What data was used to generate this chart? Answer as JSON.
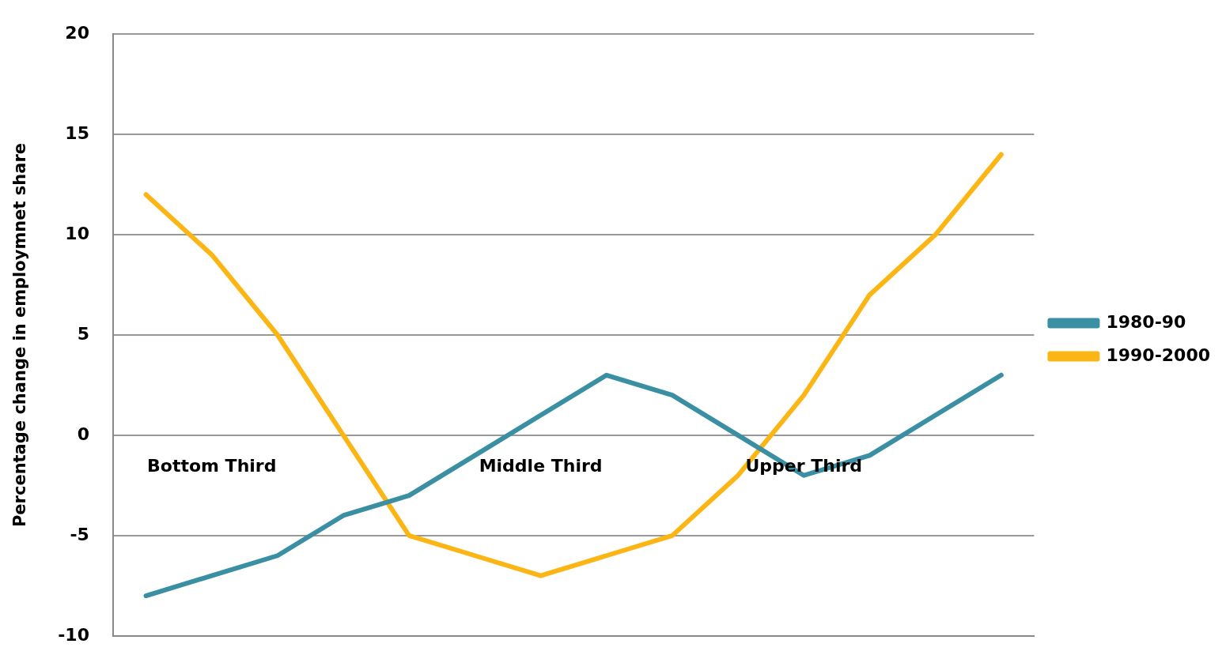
{
  "chart_data": {
    "type": "line",
    "ylabel": "Percentage change in employmnet share",
    "categories": [
      null,
      null,
      null,
      null,
      null,
      null,
      null,
      null,
      null,
      null,
      null,
      null,
      null,
      null
    ],
    "series": [
      {
        "name": "1980-90",
        "color": "#3a8fa3",
        "values": [
          -8,
          -7,
          -6,
          -4,
          -3,
          -1,
          1,
          3,
          2,
          0,
          -2,
          -1,
          1,
          3
        ]
      },
      {
        "name": "1990-2000",
        "color": "#fbb615",
        "values": [
          12,
          9,
          5,
          0,
          -5,
          -6,
          -7,
          -6,
          -5,
          -2,
          2,
          7,
          10,
          14
        ]
      }
    ],
    "annotations": [
      "Bottom Third",
      "Middle Third",
      "Upper Third"
    ],
    "ylim": [
      -10,
      20
    ],
    "yticks": [
      -10,
      -5,
      0,
      5,
      10,
      15,
      20
    ],
    "grid": "y",
    "legend": "right",
    "marker": "none",
    "line_style": "solid"
  }
}
